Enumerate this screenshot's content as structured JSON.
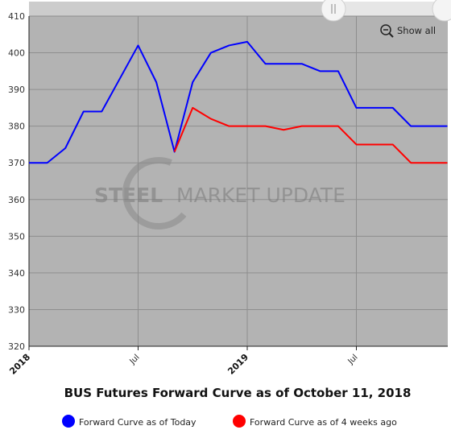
{
  "chart_data": {
    "type": "line",
    "title": "BUS Futures Forward Curve as of October 11, 2018",
    "ylim": [
      320,
      410
    ],
    "yticks": [
      320,
      330,
      340,
      350,
      360,
      370,
      380,
      390,
      400,
      410
    ],
    "xlim": [
      "2018-01",
      "2019-12"
    ],
    "xticks": [
      {
        "x": "2018-01",
        "label": "2018",
        "major": true
      },
      {
        "x": "2018-07",
        "label": "Jul",
        "major": false
      },
      {
        "x": "2019-01",
        "label": "2019",
        "major": true
      },
      {
        "x": "2019-07",
        "label": "Jul",
        "major": false
      }
    ],
    "x": [
      "2018-01",
      "2018-02",
      "2018-03",
      "2018-04",
      "2018-05",
      "2018-06",
      "2018-07",
      "2018-08",
      "2018-09",
      "2018-10",
      "2018-11",
      "2018-12",
      "2019-01",
      "2019-02",
      "2019-03",
      "2019-04",
      "2019-05",
      "2019-06",
      "2019-07",
      "2019-08",
      "2019-09",
      "2019-10",
      "2019-11",
      "2019-12"
    ],
    "series": [
      {
        "name": "Forward Curve as of Today",
        "color": "#0000ff",
        "values": [
          370,
          370,
          374,
          384,
          384,
          393,
          402,
          392,
          373,
          392,
          400,
          402,
          403,
          397,
          397,
          397,
          395,
          395,
          385,
          385,
          385,
          380,
          380,
          380
        ]
      },
      {
        "name": "Forward Curve as of 4 weeks ago",
        "color": "#ff0000",
        "values": [
          null,
          null,
          null,
          null,
          null,
          null,
          null,
          null,
          373,
          385,
          382,
          380,
          380,
          380,
          379,
          380,
          380,
          380,
          375,
          375,
          375,
          370,
          370,
          370
        ]
      }
    ],
    "grid": true,
    "legend_position": "bottom"
  },
  "controls": {
    "show_all_label": "Show all",
    "zoom_icon": "zoom-out-icon",
    "range_handle_icon": "drag-handle-icon"
  },
  "watermark": {
    "text_bold": "STEEL",
    "text_light": "MARKET UPDATE"
  },
  "colors": {
    "plot_background": "#b3b3b3",
    "grid": "#8e8e8e",
    "navigator": "#cccccc"
  }
}
